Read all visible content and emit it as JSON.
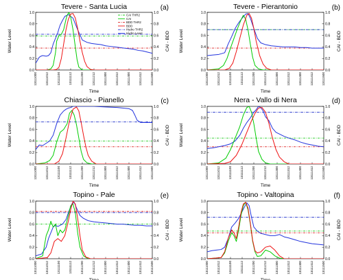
{
  "colors": {
    "cai_thr2": "#22cc22",
    "cai": "#00cc00",
    "bdd_thr2": "#dd2222",
    "bdd": "#ee1111",
    "hydro_thr2": "#2233cc",
    "hydro_level": "#2233dd"
  },
  "legend": {
    "entries": [
      "CAI THR2",
      "CAI",
      "BDD THR2",
      "BDD",
      "Hydro THR2",
      "Hydro Level"
    ]
  },
  "chart_data": [
    {
      "type": "line",
      "title": "Tevere - Santa Lucia",
      "panel_label": "(a)",
      "xlabel": "Time",
      "ylabel_left": "Water Level",
      "ylabel_right": "CAI - BDD",
      "ylim": [
        0,
        1
      ],
      "xticks": [
        "13111000",
        "13111012",
        "13111100",
        "13111112",
        "13111200",
        "13111212",
        "13111300",
        "13111312",
        "13111400",
        "13111412",
        "13111500"
      ],
      "thresholds": {
        "cai_thr2": 0.59,
        "bdd_thr2": 0.38,
        "hydro_thr2": 0.62
      },
      "series": [
        {
          "key": "hydro_level",
          "x": [
            0,
            0.1,
            0.3,
            0.45,
            0.6,
            0.9,
            1.1,
            1.3,
            1.5,
            1.7,
            1.9,
            2.0,
            2.1,
            2.3,
            2.5,
            2.8,
            3.2,
            3.6,
            4.0,
            4.4,
            4.8,
            5.2,
            5.6,
            6.0,
            6.4,
            6.8,
            7.2,
            7.6,
            8.0,
            8.4,
            8.8,
            9.2,
            9.6,
            10.0
          ],
          "y": [
            0.12,
            0.15,
            0.22,
            0.24,
            0.25,
            0.24,
            0.25,
            0.3,
            0.45,
            0.55,
            0.65,
            0.72,
            0.78,
            0.86,
            0.93,
            0.96,
            0.9,
            0.7,
            0.52,
            0.48,
            0.46,
            0.45,
            0.44,
            0.42,
            0.41,
            0.4,
            0.39,
            0.38,
            0.37,
            0.36,
            0.34,
            0.33,
            0.31,
            0.29
          ]
        },
        {
          "key": "cai",
          "x": [
            0,
            1.0,
            1.3,
            1.5,
            1.7,
            1.8,
            2.0,
            2.2,
            2.4,
            2.6,
            2.7,
            2.85,
            3.0,
            3.2,
            3.4,
            3.55,
            3.7,
            4.0,
            4.5,
            10.0
          ],
          "y": [
            0,
            0,
            0.02,
            0.08,
            0.3,
            0.5,
            0.6,
            0.62,
            0.7,
            0.88,
            0.95,
            1.0,
            0.92,
            0.7,
            0.4,
            0.18,
            0.05,
            0,
            0,
            0
          ]
        },
        {
          "key": "bdd",
          "x": [
            0,
            1.5,
            1.8,
            2.0,
            2.2,
            2.4,
            2.6,
            2.8,
            3.0,
            3.2,
            3.4,
            3.6,
            3.8,
            4.0,
            4.2,
            4.4,
            4.7,
            5.0,
            10.0
          ],
          "y": [
            0,
            0,
            0.01,
            0.05,
            0.2,
            0.45,
            0.7,
            0.88,
            0.97,
            0.98,
            0.9,
            0.72,
            0.5,
            0.3,
            0.15,
            0.06,
            0.01,
            0,
            0
          ]
        }
      ]
    },
    {
      "type": "line",
      "title": "Tevere - Pierantonio",
      "panel_label": "(b)",
      "xlabel": "Time",
      "ylabel_left": "Water Level",
      "ylabel_right": "CAI - BDD",
      "ylim": [
        0,
        1
      ],
      "xticks": [
        "13111000",
        "13111012",
        "13111100",
        "13111112",
        "13111200",
        "13111212",
        "13111300",
        "13111312",
        "13111400",
        "13111412",
        "13111500"
      ],
      "thresholds": {
        "cai_thr2": 0.7,
        "bdd_thr2": 0.38,
        "hydro_thr2": 0.7
      },
      "series": [
        {
          "key": "hydro_level",
          "x": [
            0,
            0.5,
            1.0,
            1.5,
            1.8,
            2.1,
            2.4,
            2.7,
            3.0,
            3.3,
            3.5,
            3.7,
            4.0,
            4.3,
            4.6,
            5.0,
            5.5,
            6.0,
            6.5,
            7.0,
            7.5,
            8.0,
            8.5,
            9.0,
            9.5,
            10.0
          ],
          "y": [
            0.25,
            0.26,
            0.27,
            0.3,
            0.45,
            0.58,
            0.72,
            0.82,
            0.9,
            0.97,
            0.98,
            0.9,
            0.72,
            0.55,
            0.47,
            0.44,
            0.42,
            0.41,
            0.4,
            0.4,
            0.4,
            0.39,
            0.39,
            0.38,
            0.38,
            0.38
          ]
        },
        {
          "key": "cai",
          "x": [
            0,
            1.0,
            1.4,
            1.7,
            2.0,
            2.3,
            2.6,
            2.9,
            3.1,
            3.3,
            3.5,
            3.7,
            3.9,
            4.1,
            4.4,
            4.8,
            10.0
          ],
          "y": [
            0,
            0.02,
            0.08,
            0.2,
            0.38,
            0.55,
            0.72,
            0.87,
            0.95,
            0.88,
            0.7,
            0.45,
            0.22,
            0.08,
            0.02,
            0,
            0
          ]
        },
        {
          "key": "bdd",
          "x": [
            0,
            1.5,
            1.9,
            2.2,
            2.5,
            2.8,
            3.1,
            3.4,
            3.6,
            3.8,
            4.0,
            4.2,
            4.5,
            4.8,
            5.1,
            5.5,
            10.0
          ],
          "y": [
            0,
            0,
            0.03,
            0.12,
            0.32,
            0.55,
            0.78,
            0.95,
            0.98,
            0.9,
            0.72,
            0.5,
            0.25,
            0.1,
            0.03,
            0,
            0
          ]
        }
      ]
    },
    {
      "type": "line",
      "title": "Chiascio - Pianello",
      "panel_label": "(c)",
      "xlabel": "Time",
      "ylabel_left": "Water Level",
      "ylabel_right": "CAI - BDD",
      "ylim": [
        0,
        1
      ],
      "xticks": [
        "13111000",
        "13111012",
        "13111100",
        "13111112",
        "13111200",
        "13111212",
        "13111300",
        "13111312",
        "13111400",
        "13111412",
        "13111500"
      ],
      "thresholds": {
        "cai_thr2": 0.4,
        "bdd_thr2": 0.3,
        "hydro_thr2": 0.73
      },
      "series": [
        {
          "key": "hydro_level",
          "x": [
            0,
            0.3,
            0.6,
            0.9,
            1.2,
            1.5,
            1.8,
            2.1,
            2.4,
            2.6,
            2.8,
            3.0,
            3.2,
            3.4,
            3.7,
            4.0,
            5.0,
            6.0,
            7.0,
            7.5,
            8.0,
            8.3,
            8.5,
            8.7,
            9.0,
            9.5,
            10.0
          ],
          "y": [
            0.25,
            0.33,
            0.32,
            0.36,
            0.4,
            0.5,
            0.7,
            0.85,
            0.92,
            0.95,
            0.97,
            0.98,
            1.0,
            1.0,
            1.0,
            1.0,
            1.0,
            0.99,
            0.98,
            0.97,
            0.96,
            0.93,
            0.85,
            0.76,
            0.72,
            0.72,
            0.72
          ]
        },
        {
          "key": "cai",
          "x": [
            0,
            0.8,
            1.2,
            1.5,
            1.8,
            2.1,
            2.4,
            2.7,
            2.9,
            3.1,
            3.3,
            3.5,
            3.7,
            3.9,
            4.1,
            4.4,
            4.8,
            10.0
          ],
          "y": [
            0,
            0.02,
            0.06,
            0.15,
            0.38,
            0.55,
            0.6,
            0.7,
            0.88,
            0.93,
            0.85,
            0.68,
            0.45,
            0.22,
            0.08,
            0.02,
            0,
            0
          ]
        },
        {
          "key": "bdd",
          "x": [
            0,
            1.6,
            2.0,
            2.3,
            2.6,
            2.9,
            3.2,
            3.5,
            3.7,
            3.9,
            4.1,
            4.3,
            4.5,
            4.8,
            5.2,
            10.0
          ],
          "y": [
            0,
            0,
            0.05,
            0.18,
            0.45,
            0.75,
            0.95,
            0.99,
            0.92,
            0.72,
            0.5,
            0.3,
            0.15,
            0.05,
            0,
            0
          ]
        }
      ]
    },
    {
      "type": "line",
      "title": "Nera - Vallo di Nera",
      "panel_label": "(d)",
      "xlabel": "Time",
      "ylabel_left": "Water Level",
      "ylabel_right": "CAI - BDD",
      "ylim": [
        0,
        1
      ],
      "xticks": [
        "13111000",
        "13111012",
        "13111100",
        "13111112",
        "13111200",
        "13111212",
        "13111300",
        "13111312",
        "13111400",
        "13111412",
        "13111500"
      ],
      "thresholds": {
        "cai_thr2": 0.45,
        "bdd_thr2": 0.3,
        "hydro_thr2": 0.9
      },
      "series": [
        {
          "key": "hydro_level",
          "x": [
            0,
            0.5,
            1.0,
            1.5,
            2.0,
            2.4,
            2.8,
            3.1,
            3.4,
            3.7,
            4.0,
            4.2,
            4.4,
            4.6,
            4.8,
            5.0,
            5.3,
            5.6,
            5.9,
            6.2,
            6.6,
            7.0,
            7.5,
            8.0,
            8.5,
            9.0,
            9.5,
            10.0
          ],
          "y": [
            0.27,
            0.28,
            0.3,
            0.32,
            0.35,
            0.4,
            0.5,
            0.62,
            0.72,
            0.8,
            0.9,
            0.94,
            1.0,
            0.98,
            0.92,
            0.82,
            0.75,
            0.62,
            0.55,
            0.52,
            0.48,
            0.45,
            0.42,
            0.38,
            0.35,
            0.33,
            0.31,
            0.3
          ]
        },
        {
          "key": "cai",
          "x": [
            0,
            1.0,
            1.6,
            2.0,
            2.4,
            2.8,
            3.1,
            3.4,
            3.6,
            3.8,
            4.0,
            4.2,
            4.4,
            4.7,
            5.0,
            5.4,
            10.0
          ],
          "y": [
            0,
            0.02,
            0.1,
            0.25,
            0.45,
            0.65,
            0.85,
            0.98,
            1.0,
            0.9,
            0.7,
            0.45,
            0.22,
            0.08,
            0.02,
            0,
            0
          ]
        },
        {
          "key": "bdd",
          "x": [
            0,
            1.5,
            2.0,
            2.5,
            3.0,
            3.4,
            3.8,
            4.1,
            4.4,
            4.7,
            5.0,
            5.3,
            5.6,
            5.9,
            6.2,
            6.6,
            7.0,
            10.0
          ],
          "y": [
            0,
            0.01,
            0.04,
            0.15,
            0.35,
            0.55,
            0.75,
            0.88,
            0.97,
            0.98,
            0.9,
            0.7,
            0.45,
            0.25,
            0.12,
            0.04,
            0,
            0
          ]
        }
      ]
    },
    {
      "type": "line",
      "title": "Topino - Pale",
      "panel_label": "(e)",
      "xlabel": "Time",
      "ylabel_left": "Water Level",
      "ylabel_right": "CAI - BDD",
      "ylim": [
        0,
        1
      ],
      "xticks": [
        "13111000",
        "13111012",
        "13111100",
        "13111112",
        "13111200",
        "13111212",
        "13111300",
        "13111312",
        "13111400",
        "13111412",
        "13111500"
      ],
      "thresholds": {
        "cai_thr2": 0.6,
        "bdd_thr2": 0.82,
        "hydro_thr2": 0.8
      },
      "series": [
        {
          "key": "hydro_level",
          "x": [
            0,
            0.5,
            0.9,
            1.1,
            1.3,
            1.5,
            1.7,
            1.9,
            2.1,
            2.3,
            2.6,
            2.9,
            3.1,
            3.3,
            3.5,
            3.8,
            4.1,
            4.5,
            5.0,
            5.5,
            6.0,
            6.5,
            7.0,
            7.5,
            8.0,
            8.5,
            9.0,
            9.5,
            10.0
          ],
          "y": [
            0.05,
            0.08,
            0.2,
            0.35,
            0.45,
            0.55,
            0.58,
            0.56,
            0.58,
            0.6,
            0.68,
            0.85,
            0.95,
            0.98,
            0.88,
            0.75,
            0.7,
            0.66,
            0.64,
            0.63,
            0.62,
            0.61,
            0.6,
            0.6,
            0.59,
            0.58,
            0.58,
            0.57,
            0.57
          ]
        },
        {
          "key": "cai",
          "x": [
            0,
            0.6,
            0.9,
            1.1,
            1.3,
            1.5,
            1.7,
            1.9,
            2.1,
            2.3,
            2.5,
            2.8,
            3.0,
            3.2,
            3.4,
            3.6,
            3.8,
            4.1,
            4.5,
            10.0
          ],
          "y": [
            0,
            0.05,
            0.4,
            0.5,
            0.65,
            0.55,
            0.6,
            0.4,
            0.5,
            0.45,
            0.5,
            0.75,
            0.92,
            0.95,
            0.8,
            0.45,
            0.2,
            0.05,
            0,
            0
          ]
        },
        {
          "key": "bdd",
          "x": [
            0,
            1.0,
            1.3,
            1.6,
            1.9,
            2.2,
            2.5,
            2.8,
            3.0,
            3.2,
            3.4,
            3.6,
            3.8,
            4.0,
            4.3,
            4.7,
            10.0
          ],
          "y": [
            0,
            0.02,
            0.1,
            0.3,
            0.35,
            0.3,
            0.4,
            0.65,
            0.85,
            1.0,
            0.95,
            0.7,
            0.4,
            0.15,
            0.03,
            0,
            0
          ]
        }
      ]
    },
    {
      "type": "line",
      "title": "Topino - Valtopina",
      "panel_label": "(f)",
      "xlabel": "Time",
      "ylabel_left": "Water Level",
      "ylabel_right": "CAI - BDD",
      "ylim": [
        0,
        1
      ],
      "xticks": [
        "13111000",
        "13111012",
        "13111100",
        "13111112",
        "13111200",
        "13111212",
        "13111300",
        "13111312",
        "13111400",
        "13111412",
        "13111500"
      ],
      "thresholds": {
        "cai_thr2": 0.48,
        "bdd_thr2": 0.45,
        "hydro_thr2": 0.72
      },
      "series": [
        {
          "key": "hydro_level",
          "x": [
            0,
            0.4,
            0.8,
            1.2,
            1.5,
            1.8,
            2.1,
            2.4,
            2.7,
            3.0,
            3.2,
            3.4,
            3.6,
            3.8,
            4.0,
            4.3,
            4.6,
            5.0,
            5.4,
            5.8,
            6.2,
            6.6,
            7.0,
            7.5,
            8.0,
            8.5,
            9.0,
            9.5,
            10.0
          ],
          "y": [
            0.12,
            0.14,
            0.15,
            0.16,
            0.2,
            0.35,
            0.55,
            0.62,
            0.7,
            0.82,
            0.9,
            0.97,
            0.92,
            0.72,
            0.55,
            0.48,
            0.44,
            0.42,
            0.4,
            0.4,
            0.42,
            0.38,
            0.36,
            0.33,
            0.3,
            0.28,
            0.26,
            0.25,
            0.24
          ]
        },
        {
          "key": "cai",
          "x": [
            0,
            1.2,
            1.5,
            1.8,
            2.1,
            2.3,
            2.5,
            2.7,
            2.9,
            3.1,
            3.3,
            3.5,
            3.7,
            3.9,
            4.1,
            4.3,
            4.6,
            5.0,
            5.4,
            5.8,
            6.2,
            6.6,
            10.0
          ],
          "y": [
            0,
            0.02,
            0.1,
            0.3,
            0.45,
            0.4,
            0.3,
            0.5,
            0.75,
            0.92,
            0.98,
            0.85,
            0.6,
            0.3,
            0.12,
            0.04,
            0.05,
            0.15,
            0.12,
            0.05,
            0.01,
            0,
            0
          ]
        },
        {
          "key": "bdd",
          "x": [
            0,
            1.2,
            1.5,
            1.8,
            2.1,
            2.3,
            2.5,
            2.7,
            2.9,
            3.1,
            3.3,
            3.5,
            3.7,
            3.9,
            4.1,
            4.3,
            4.6,
            5.0,
            5.4,
            5.8,
            6.2,
            6.6,
            10.0
          ],
          "y": [
            0,
            0.02,
            0.12,
            0.35,
            0.5,
            0.45,
            0.35,
            0.55,
            0.8,
            0.95,
            0.98,
            0.88,
            0.62,
            0.32,
            0.14,
            0.1,
            0.12,
            0.2,
            0.22,
            0.15,
            0.05,
            0,
            0
          ]
        }
      ]
    }
  ]
}
